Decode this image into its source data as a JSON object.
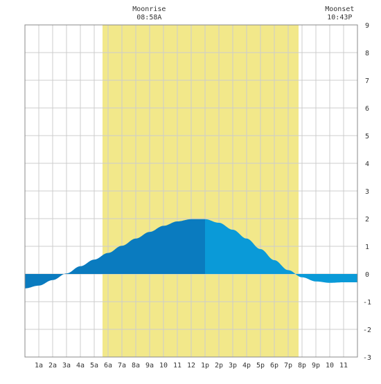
{
  "chart_data": {
    "type": "area",
    "ylim": [
      -3,
      9
    ],
    "xlim": [
      0,
      24
    ],
    "y_ticks": [
      9,
      8,
      7,
      6,
      5,
      4,
      3,
      2,
      1,
      0,
      -1,
      -2,
      -3
    ],
    "x_tick_labels": [
      "1a",
      "2a",
      "3a",
      "4a",
      "5a",
      "6a",
      "7a",
      "8a",
      "9a",
      "10",
      "11",
      "12",
      "1p",
      "2p",
      "3p",
      "4p",
      "5p",
      "6p",
      "7p",
      "8p",
      "9p",
      "10",
      "11"
    ],
    "grid": true,
    "daylight": {
      "start": 5.6,
      "end": 19.75,
      "color": "#f2e88a"
    },
    "moonrise": {
      "label": "Moonrise",
      "time": "08:58A"
    },
    "moonset": {
      "label": "Moonset",
      "time": "10:43P"
    },
    "marker_hour": 13.0,
    "series": [
      {
        "x": [
          0,
          1,
          2,
          3,
          4,
          5,
          6,
          7,
          8,
          9,
          10,
          11,
          12,
          13,
          14,
          15,
          16,
          17,
          18,
          19,
          20,
          21,
          22,
          23,
          24
        ],
        "values": [
          -0.52,
          -0.42,
          -0.22,
          0.02,
          0.28,
          0.52,
          0.76,
          1.02,
          1.28,
          1.52,
          1.74,
          1.9,
          1.98,
          1.98,
          1.85,
          1.6,
          1.28,
          0.9,
          0.5,
          0.14,
          -0.12,
          -0.27,
          -0.32,
          -0.3,
          -0.3
        ]
      }
    ],
    "colors": {
      "before_marker": "#0a7bbf",
      "after_marker": "#0a9ad8",
      "grid": "#cccccc",
      "border": "#888888"
    }
  }
}
